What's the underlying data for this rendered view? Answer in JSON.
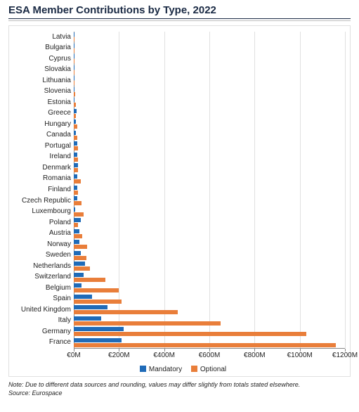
{
  "title": "ESA Member Contributions by Type, 2022",
  "note": "Note: Due to different data sources and rounding, values may differ slightly from totals stated elsewhere.",
  "source": "Source: Eurospace",
  "chart": {
    "type": "bar",
    "orientation": "horizontal",
    "stacked": false,
    "grouped": true,
    "xlim": [
      0,
      1200
    ],
    "xtick_step": 200,
    "xticklabels": [
      "€0M",
      "€200M",
      "€400M",
      "€600M",
      "€800M",
      "€1000M",
      "€1200M"
    ],
    "grid_color": "#e0e0e0",
    "axis_color": "#888888",
    "label_fontsize": 10,
    "title_fontsize": 15,
    "title_color": "#1a2a44",
    "background_color": "#ffffff",
    "border_color": "#e0e0e0",
    "series": [
      {
        "name": "Mandatory",
        "color": "#1f6bb8"
      },
      {
        "name": "Optional",
        "color": "#e97e3a"
      }
    ],
    "countries": [
      {
        "name": "Latvia",
        "mandatory": 1,
        "optional": 1
      },
      {
        "name": "Bulgaria",
        "mandatory": 1,
        "optional": 2
      },
      {
        "name": "Cyprus",
        "mandatory": 1,
        "optional": 2
      },
      {
        "name": "Slovakia",
        "mandatory": 2,
        "optional": 3
      },
      {
        "name": "Lithuania",
        "mandatory": 1,
        "optional": 4
      },
      {
        "name": "Slovenia",
        "mandatory": 1,
        "optional": 5
      },
      {
        "name": "Estonia",
        "mandatory": 1,
        "optional": 8
      },
      {
        "name": "Greece",
        "mandatory": 12,
        "optional": 8
      },
      {
        "name": "Hungary",
        "mandatory": 8,
        "optional": 14
      },
      {
        "name": "Canada",
        "mandatory": 8,
        "optional": 16
      },
      {
        "name": "Portugal",
        "mandatory": 14,
        "optional": 18
      },
      {
        "name": "Ireland",
        "mandatory": 14,
        "optional": 20
      },
      {
        "name": "Denmark",
        "mandatory": 20,
        "optional": 20
      },
      {
        "name": "Romania",
        "mandatory": 14,
        "optional": 30
      },
      {
        "name": "Finland",
        "mandatory": 16,
        "optional": 20
      },
      {
        "name": "Czech Republic",
        "mandatory": 16,
        "optional": 34
      },
      {
        "name": "Luxembourg",
        "mandatory": 6,
        "optional": 42
      },
      {
        "name": "Poland",
        "mandatory": 30,
        "optional": 20
      },
      {
        "name": "Austria",
        "mandatory": 24,
        "optional": 38
      },
      {
        "name": "Norway",
        "mandatory": 24,
        "optional": 60
      },
      {
        "name": "Sweden",
        "mandatory": 30,
        "optional": 55
      },
      {
        "name": "Netherlands",
        "mandatory": 50,
        "optional": 70
      },
      {
        "name": "Switzerland",
        "mandatory": 45,
        "optional": 140
      },
      {
        "name": "Belgium",
        "mandatory": 35,
        "optional": 200
      },
      {
        "name": "Spain",
        "mandatory": 80,
        "optional": 210
      },
      {
        "name": "United Kingdom",
        "mandatory": 150,
        "optional": 460
      },
      {
        "name": "Italy",
        "mandatory": 120,
        "optional": 650
      },
      {
        "name": "Germany",
        "mandatory": 220,
        "optional": 1030
      },
      {
        "name": "France",
        "mandatory": 210,
        "optional": 1160
      }
    ]
  }
}
